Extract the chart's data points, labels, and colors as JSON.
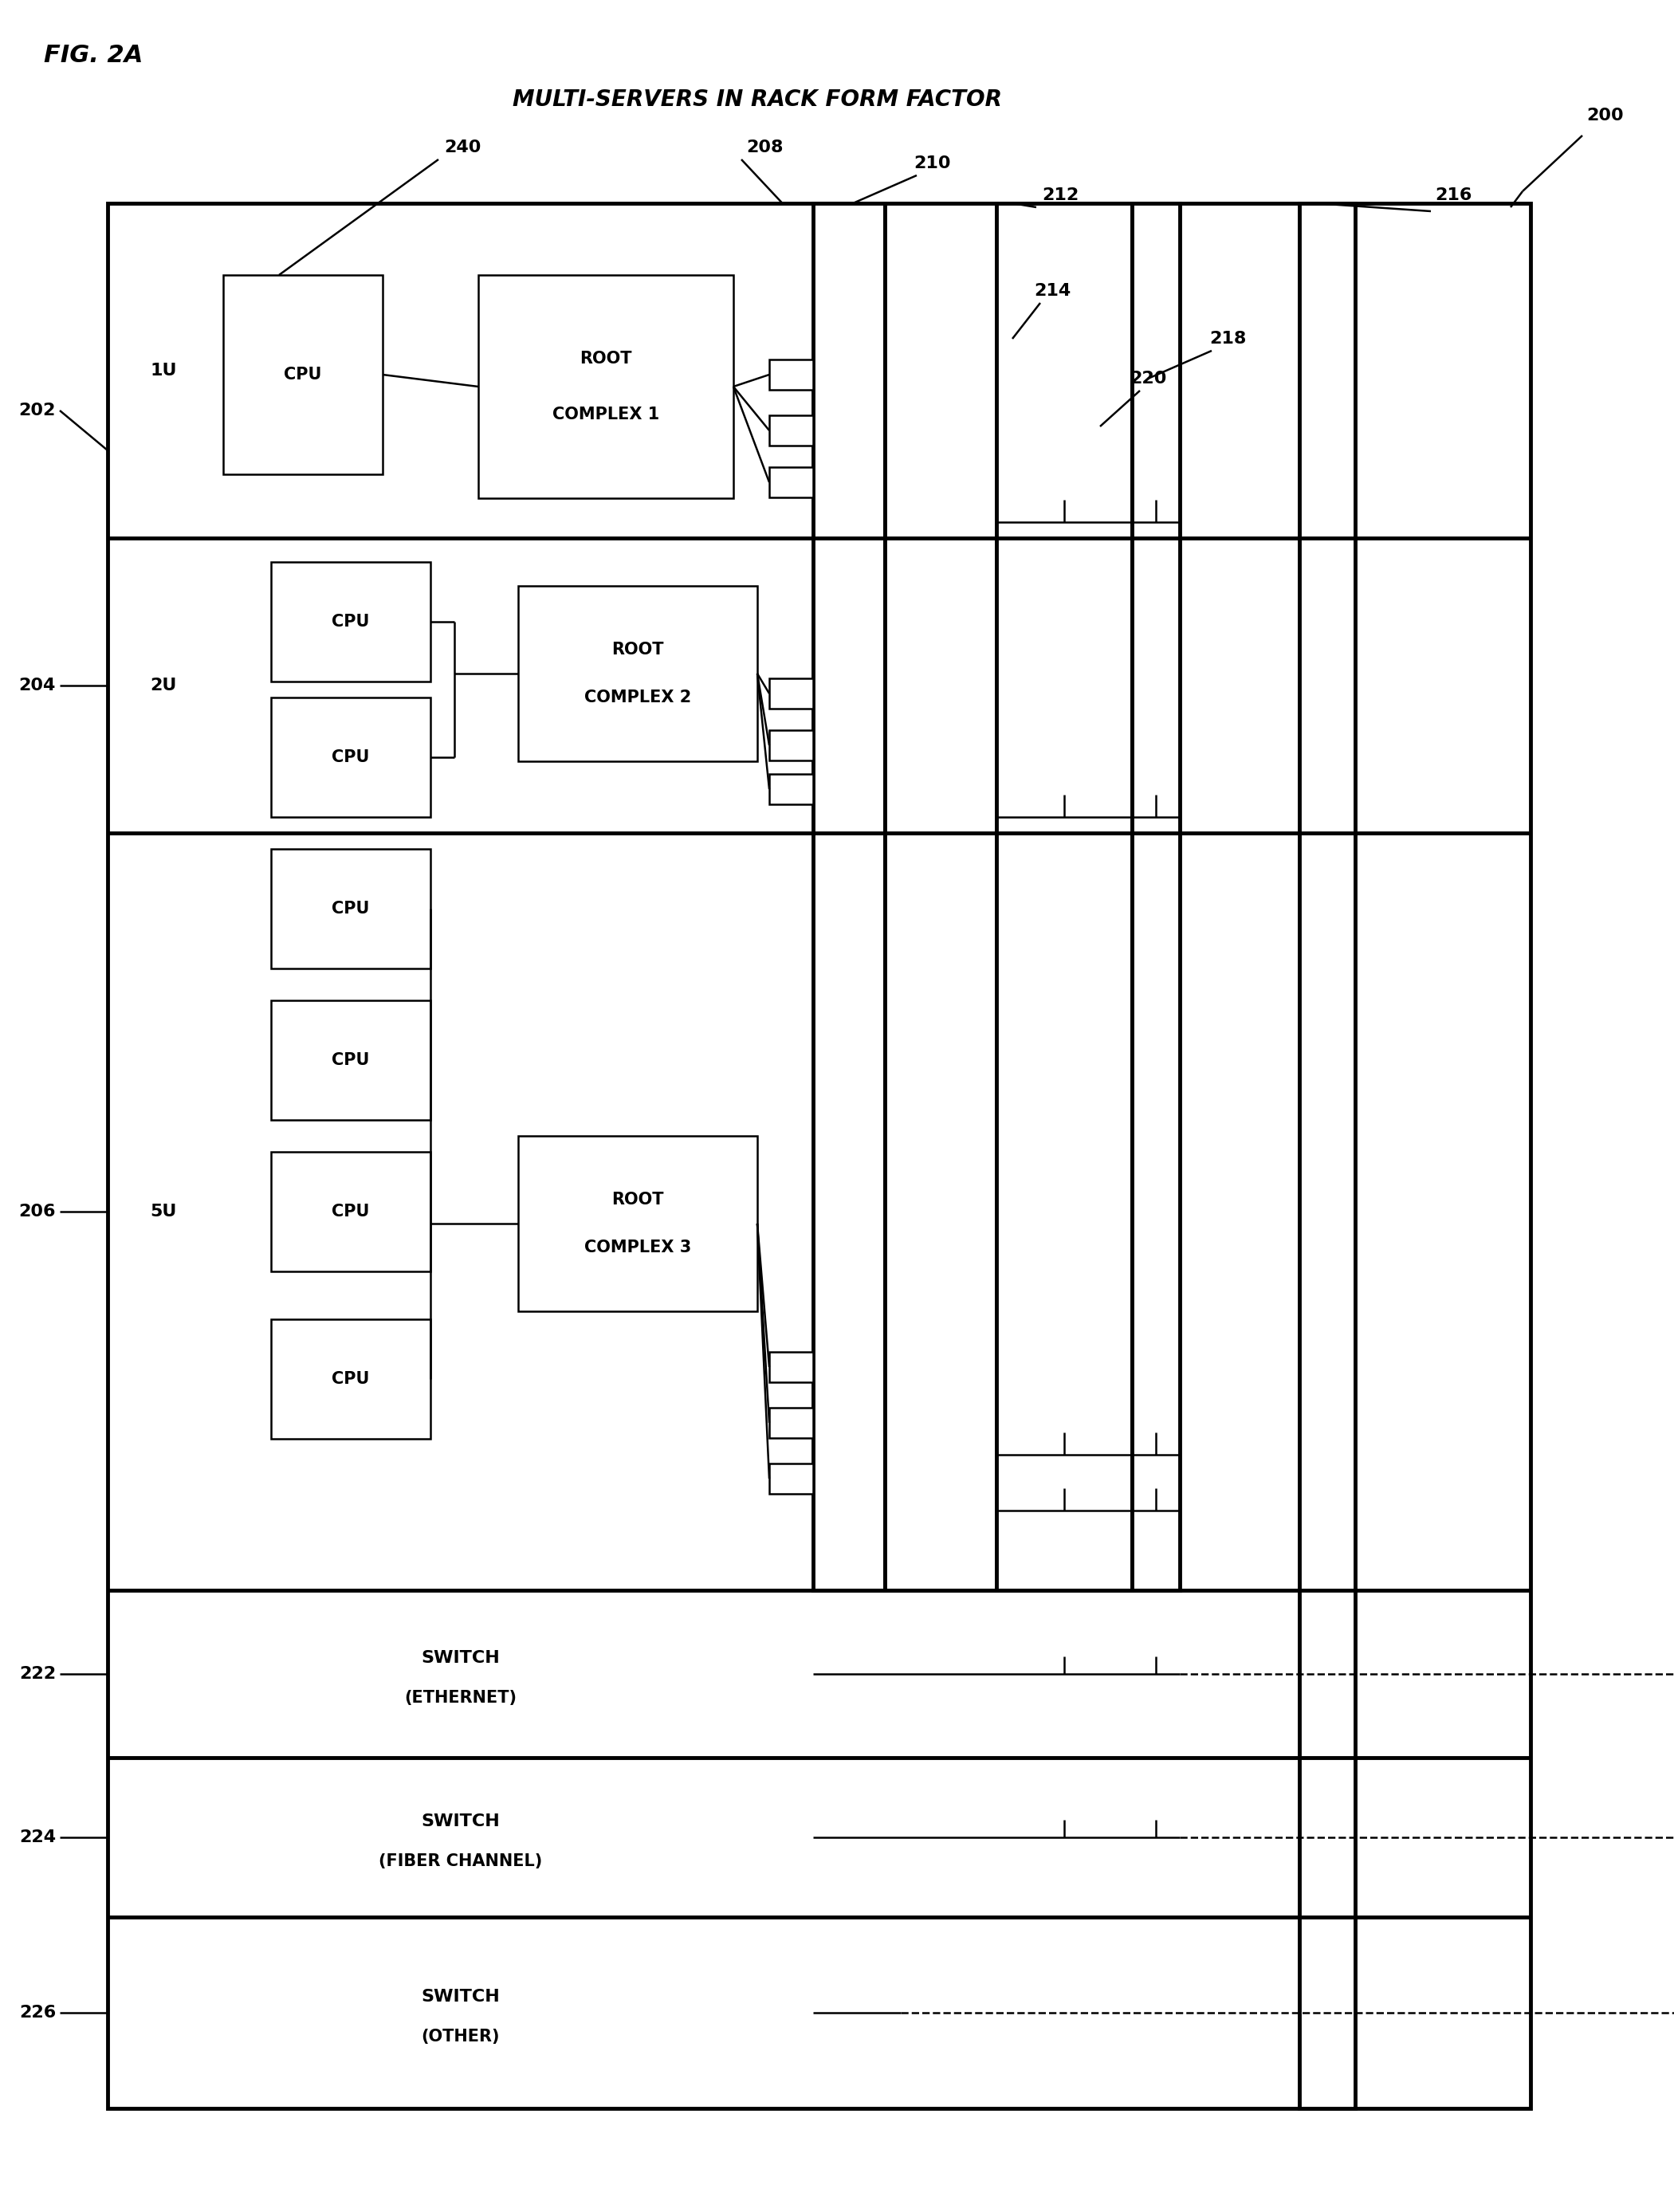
{
  "fig_label": "FIG. 2A",
  "title": "MULTI-SERVERS IN RACK FORM FACTOR",
  "diagram_ref": "200",
  "bg_color": "#ffffff",
  "line_color": "#000000",
  "lw_thin": 1.8,
  "lw_thick": 3.5,
  "font_size_label": 16,
  "font_size_box": 15,
  "font_size_ref": 16,
  "font_size_title": 20,
  "font_size_fig": 22
}
